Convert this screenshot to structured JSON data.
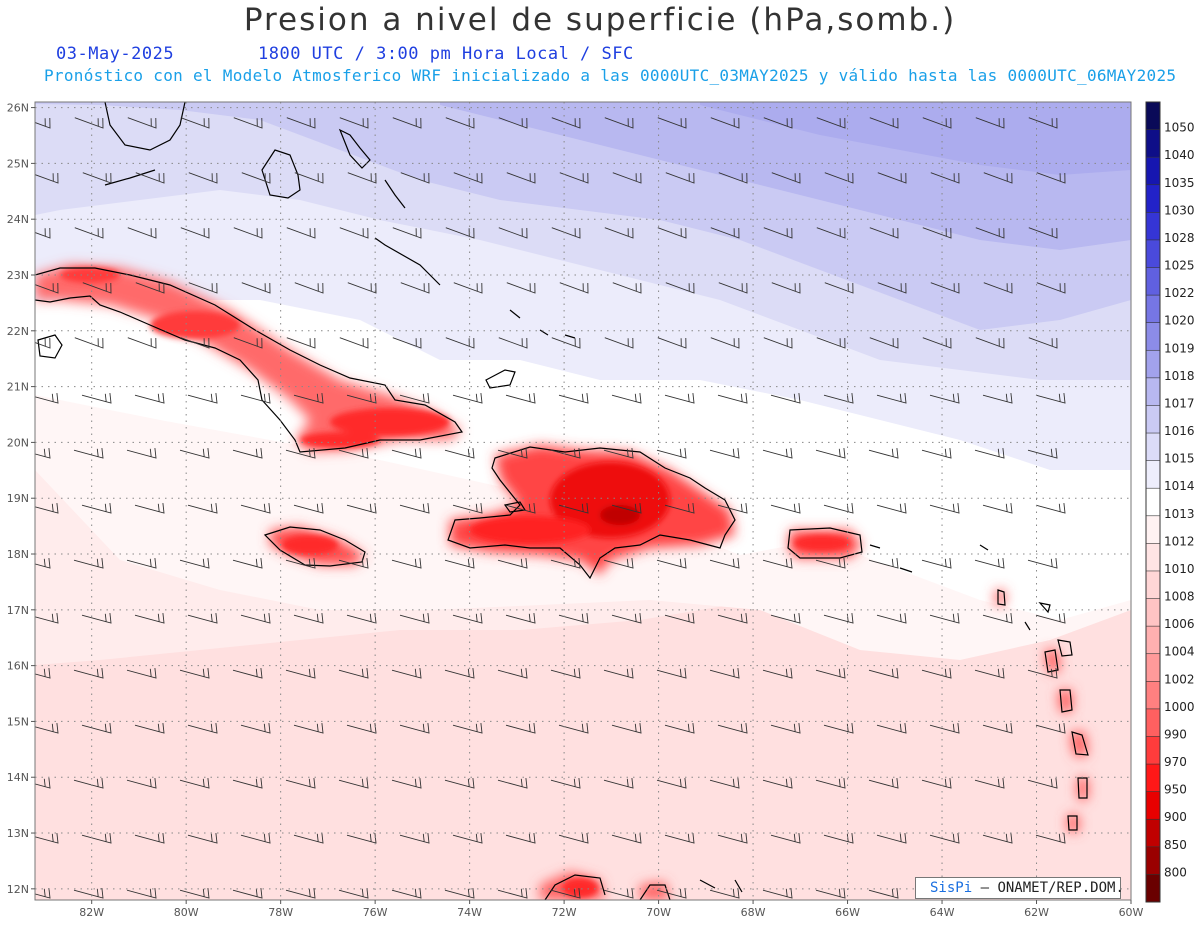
{
  "header": {
    "title": "Presion a nivel de superficie (hPa,somb.)",
    "date": "03-May-2025",
    "time_info": "1800 UTC / 3:00 pm Hora Local / SFC",
    "subtitle": "Pronóstico con el Modelo Atmosferico WRF inicializado a las 0000UTC_03MAY2025 y válido hasta las  0000UTC_06MAY2025"
  },
  "map": {
    "lat_labels": [
      "26N",
      "25N",
      "24N",
      "23N",
      "22N",
      "21N",
      "20N",
      "19N",
      "18N",
      "17N",
      "16N",
      "15N",
      "14N",
      "13N",
      "12N"
    ],
    "lon_labels": [
      "82W",
      "80W",
      "78W",
      "76W",
      "74W",
      "72W",
      "70W",
      "68W",
      "66W",
      "64W",
      "62W",
      "60W"
    ],
    "extent": {
      "lon_min": -83.2,
      "lon_max": -60,
      "lat_min": 11.8,
      "lat_max": 26.1
    }
  },
  "colorbar": {
    "levels": [
      "1050",
      "1040",
      "1035",
      "1030",
      "1028",
      "1025",
      "1022",
      "1020",
      "1019",
      "1018",
      "1017",
      "1016",
      "1015",
      "1014",
      "1013",
      "1012",
      "1010",
      "1008",
      "1006",
      "1004",
      "1002",
      "1000",
      "990",
      "970",
      "950",
      "900",
      "850",
      "800"
    ],
    "colors": [
      "#0a0a58",
      "#0e0e88",
      "#1616b0",
      "#2222c8",
      "#3535d5",
      "#4a4adc",
      "#6060e0",
      "#7676e4",
      "#8c8ce8",
      "#a2a2ec",
      "#b8b8f0",
      "#cacaf4",
      "#dcdcf8",
      "#eeeefc",
      "#ffffff",
      "#fff2f2",
      "#ffe4e4",
      "#ffd6d6",
      "#ffc4c4",
      "#ffb0b0",
      "#ff9a9a",
      "#ff8080",
      "#ff6060",
      "#ff3c3c",
      "#ff1818",
      "#e80000",
      "#c00000",
      "#9a0000",
      "#6a0000"
    ]
  },
  "credit": {
    "brand": "SisPi",
    "text": "– ONAMET/REP.DOM."
  }
}
